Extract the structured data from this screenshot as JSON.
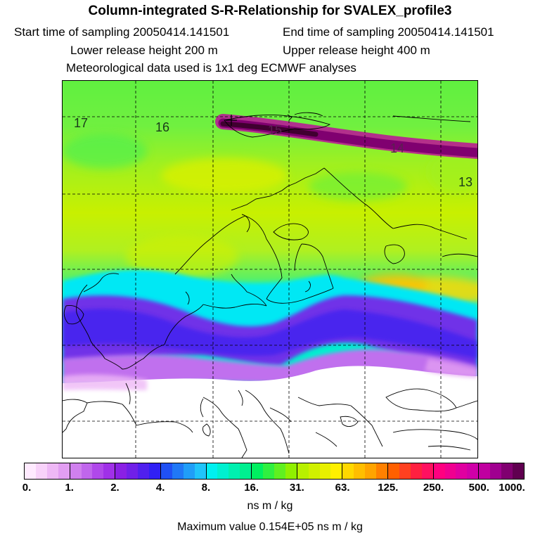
{
  "header": {
    "title": "Column-integrated S-R-Relationship for SVALEX_profile3",
    "start_time": "Start time of sampling 20050414.141501",
    "end_time": "End time of sampling 20050414.141501",
    "lower_height": "Lower release height  200 m",
    "upper_height": "Upper release height  400 m",
    "met_data": "Meteorological data used is 1x1 deg ECMWF analyses"
  },
  "map": {
    "day_labels": [
      "17",
      "16",
      "15",
      "14",
      "13"
    ]
  },
  "legend": {
    "tick_labels": [
      "0.",
      "1.",
      "2.",
      "4.",
      "8.",
      "16.",
      "31.",
      "63.",
      "125.",
      "250.",
      "500.",
      "1000."
    ],
    "colors": [
      "#ffeaff",
      "#f8d2fa",
      "#eeb8f6",
      "#e29ef2",
      "#d080ee",
      "#c066ec",
      "#b048ea",
      "#a030e8",
      "#8a20e4",
      "#7020e8",
      "#5020ee",
      "#3020f4",
      "#2050f4",
      "#2078f6",
      "#209ef8",
      "#20c4fa",
      "#00f0f0",
      "#00f0d0",
      "#00f0b0",
      "#00f090",
      "#00f060",
      "#30f040",
      "#60f020",
      "#90f000",
      "#b8f000",
      "#d0f000",
      "#e8f000",
      "#fff000",
      "#ffd800",
      "#ffbe00",
      "#ffa400",
      "#ff8000",
      "#ff6000",
      "#ff4020",
      "#ff2040",
      "#ff1060",
      "#ff0080",
      "#f00090",
      "#e000a0",
      "#d000a8",
      "#c000a0",
      "#a00090",
      "#800070",
      "#600050"
    ],
    "unit": "ns m / kg",
    "max_value": "Maximum value  0.154E+05 ns m / kg"
  }
}
